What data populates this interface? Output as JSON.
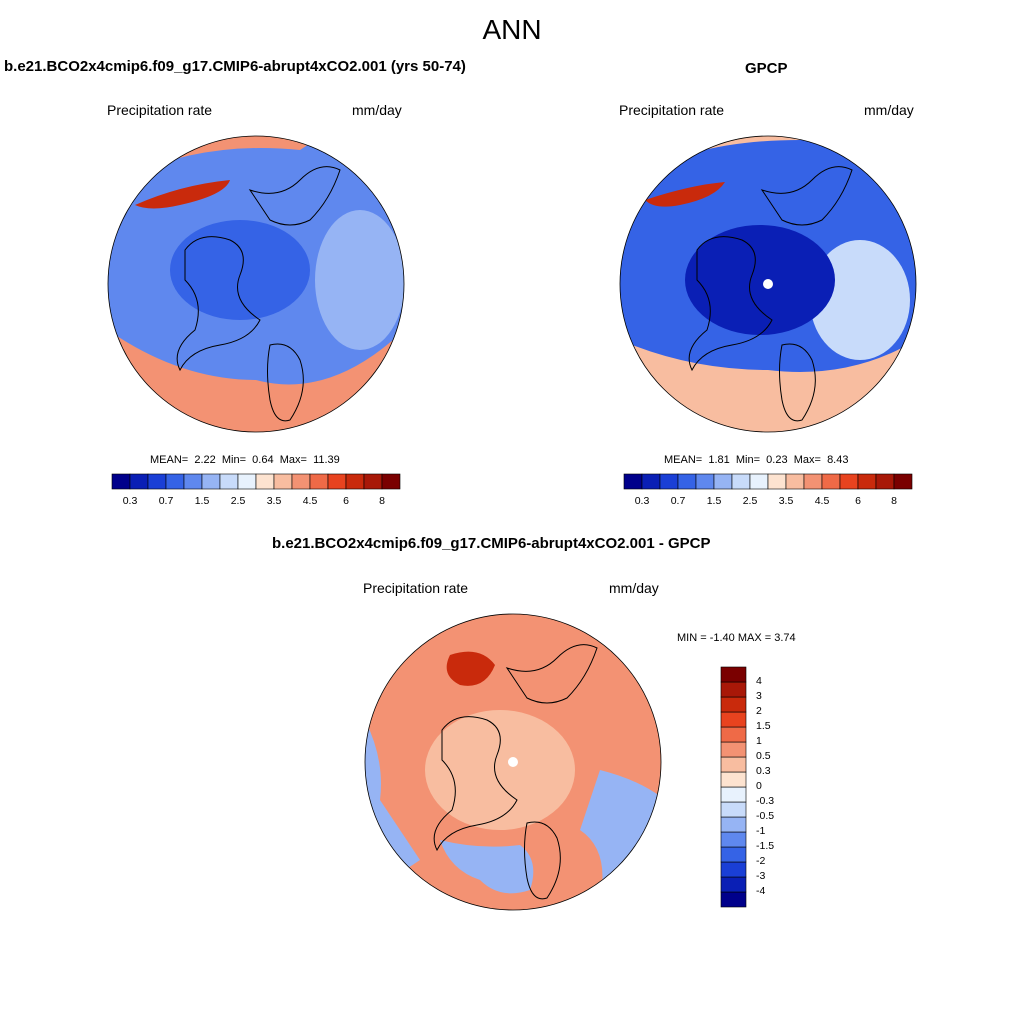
{
  "page": {
    "title": "ANN"
  },
  "panels": [
    {
      "title": "b.e21.BCO2x4cmip6.f09_g17.CMIP6-abrupt4xCO2.001 (yrs 50-74)",
      "left_label": "Precipitation rate",
      "right_label": "mm/day",
      "stats": {
        "mean_label": "MEAN=",
        "mean": "2.22",
        "min_label": "Min=",
        "min": "0.64",
        "max_label": "Max=",
        "max": "11.39"
      }
    },
    {
      "title": "GPCP",
      "left_label": "Precipitation rate",
      "right_label": "mm/day",
      "stats": {
        "mean_label": "MEAN=",
        "mean": "1.81",
        "min_label": "Min=",
        "min": "0.23",
        "max_label": "Max=",
        "max": "8.43"
      }
    },
    {
      "title": "b.e21.BCO2x4cmip6.f09_g17.CMIP6-abrupt4xCO2.001 - GPCP",
      "left_label": "Precipitation rate",
      "right_label": "mm/day",
      "stats": {
        "text": "MIN =  -1.40 MAX =   3.74"
      }
    }
  ],
  "abs_colorbar": {
    "colors": [
      "#00008b",
      "#0a1fb5",
      "#1a3fd6",
      "#3563e6",
      "#5f88ee",
      "#96b4f4",
      "#c8dbfa",
      "#e8f2fd",
      "#fde3d0",
      "#f8bda0",
      "#f39273",
      "#ef6a47",
      "#e8431f",
      "#c92a0c",
      "#a81808",
      "#7a0000"
    ],
    "tick_labels": [
      "0.3",
      "0.7",
      "1.5",
      "2.5",
      "3.5",
      "4.5",
      "6",
      "8"
    ]
  },
  "diff_colorbar": {
    "colors": [
      "#00008b",
      "#0a1fb5",
      "#1a3fd6",
      "#3563e6",
      "#5f88ee",
      "#96b4f4",
      "#c8dbfa",
      "#e8f2fd",
      "#fde3d0",
      "#f8bda0",
      "#f39273",
      "#ef6a47",
      "#e8431f",
      "#c92a0c",
      "#a81808",
      "#7a0000"
    ],
    "tick_labels": [
      "-4",
      "-3",
      "-2",
      "-1.5",
      "-1",
      "-0.5",
      "-0.3",
      "0",
      "0.3",
      "0.5",
      "1",
      "1.5",
      "2",
      "3",
      "4"
    ]
  },
  "map_palette": {
    "panel1": {
      "base": "#5f88ee",
      "inner": "#3563e6",
      "ring": "#96b4f4",
      "rim": "#f39273",
      "hot": "#c92a0c"
    },
    "panel2": {
      "base": "#3563e6",
      "inner": "#0a1fb5",
      "ring": "#c8dbfa",
      "rim": "#f8bda0",
      "hot": "#c92a0c"
    },
    "panel3": {
      "base": "#f39273",
      "inner": "#f8bda0",
      "ring": "#96b4f4",
      "rim": "#fde3d0",
      "hot": "#c92a0c"
    }
  }
}
